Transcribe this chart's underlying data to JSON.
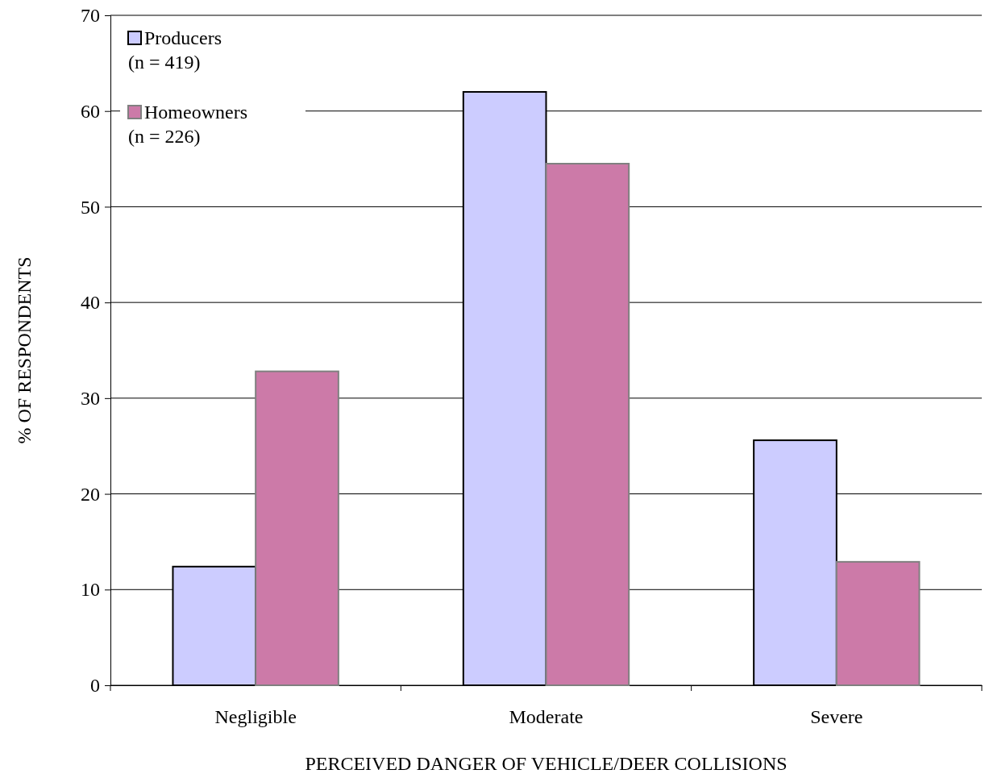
{
  "chart_data": {
    "type": "bar",
    "xlabel": "PERCEIVED DANGER OF VEHICLE/DEER COLLISIONS",
    "ylabel": "% OF RESPONDENTS",
    "categories": [
      "Negligible",
      "Moderate",
      "Severe"
    ],
    "series": [
      {
        "name": "Producers\n(n = 419)",
        "color": "#ccccff",
        "values": [
          12.4,
          62.0,
          25.6
        ]
      },
      {
        "name": "Homeowners\n(n = 226)",
        "color": "#cc7aa8",
        "values": [
          32.8,
          54.5,
          12.9
        ]
      }
    ],
    "ylim": [
      0,
      70
    ],
    "yticks": [
      0,
      10,
      20,
      30,
      40,
      50,
      60,
      70
    ],
    "grid": "y",
    "legend": "top left"
  }
}
